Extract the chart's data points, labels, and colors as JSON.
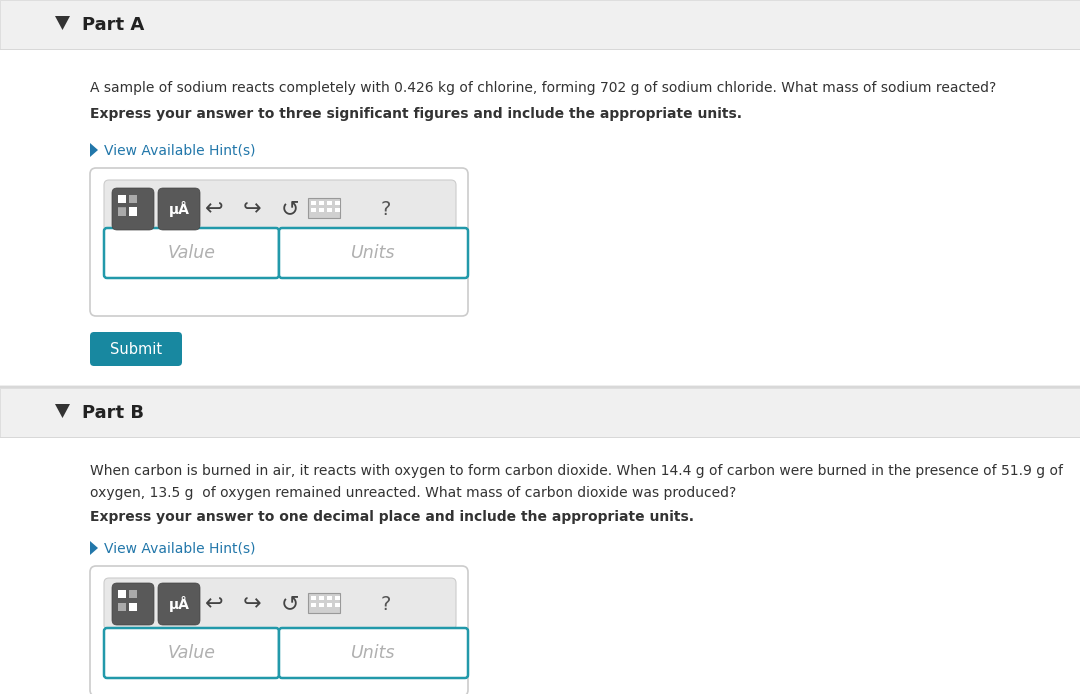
{
  "bg_light_gray": "#eeeeee",
  "bg_white": "#ffffff",
  "header_gray": "#f0f0f0",
  "separator_gray": "#d8d8d8",
  "part_a_header": "Part A",
  "part_b_header": "Part B",
  "part_a_question": "A sample of sodium reacts completely with 0.426 kg of chlorine, forming 702 g of sodium chloride. What mass of sodium reacted?",
  "part_a_bold": "Express your answer to three significant figures and include the appropriate units.",
  "part_b_q1": "When carbon is burned in air, it reacts with oxygen to form carbon dioxide. When 14.4 g of carbon were burned in the presence of 51.9 g of",
  "part_b_q2": "oxygen, 13.5 g  of oxygen remained unreacted. What mass of carbon dioxide was produced?",
  "part_b_bold": "Express your answer to one decimal place and include the appropriate units.",
  "hint_text": "View Available Hint(s)",
  "hint_color": "#2277aa",
  "value_placeholder": "Value",
  "units_placeholder": "Units",
  "submit_text": "Submit",
  "submit_bg": "#1888a0",
  "toolbar_icon_bg": "#666666",
  "toolbar_icon_bg2": "#777777",
  "toolbar_bar_bg": "#e8e8e8",
  "toolbar_bar_border": "#cccccc",
  "input_border_color": "#2299aa",
  "placeholder_color": "#b0b0b0",
  "text_color": "#333333",
  "header_text_color": "#222222",
  "triangle_color": "#333333",
  "box_border_color": "#cccccc"
}
